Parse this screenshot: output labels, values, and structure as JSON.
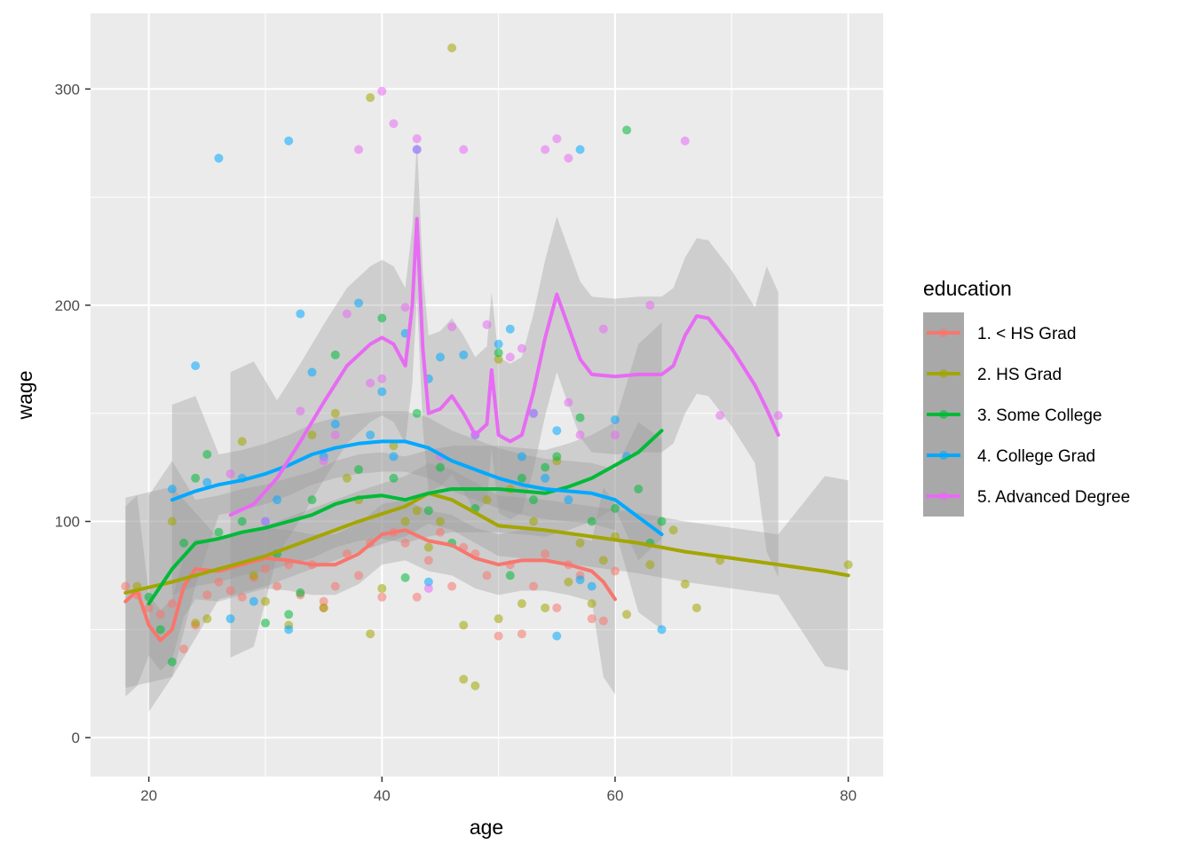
{
  "chart_data": {
    "type": "scatter",
    "xlabel": "age",
    "ylabel": "wage",
    "xlim": [
      15,
      83
    ],
    "ylim": [
      -18,
      335
    ],
    "x_ticks": [
      20,
      40,
      60,
      80
    ],
    "y_ticks": [
      0,
      100,
      200,
      300
    ],
    "x_tick_labels": [
      "20",
      "40",
      "60",
      "80"
    ],
    "y_tick_labels": [
      "0",
      "100",
      "200",
      "300"
    ],
    "grid": true,
    "legend_position": "right",
    "legend_title": "education",
    "series": [
      {
        "name": "1. < HS Grad",
        "color": "#F8766D",
        "points": [
          [
            18,
            70
          ],
          [
            19,
            66
          ],
          [
            20,
            60
          ],
          [
            21,
            57
          ],
          [
            22,
            62
          ],
          [
            23,
            41
          ],
          [
            24,
            52
          ],
          [
            25,
            66
          ],
          [
            26,
            72
          ],
          [
            27,
            68
          ],
          [
            28,
            65
          ],
          [
            29,
            74
          ],
          [
            30,
            78
          ],
          [
            31,
            70
          ],
          [
            32,
            80
          ],
          [
            33,
            66
          ],
          [
            34,
            80
          ],
          [
            35,
            60
          ],
          [
            35,
            63
          ],
          [
            36,
            70
          ],
          [
            37,
            85
          ],
          [
            38,
            75
          ],
          [
            39,
            90
          ],
          [
            40,
            65
          ],
          [
            41,
            95
          ],
          [
            42,
            90
          ],
          [
            43,
            65
          ],
          [
            44,
            82
          ],
          [
            45,
            95
          ],
          [
            46,
            70
          ],
          [
            47,
            88
          ],
          [
            48,
            85
          ],
          [
            49,
            75
          ],
          [
            50,
            47
          ],
          [
            51,
            80
          ],
          [
            52,
            48
          ],
          [
            53,
            70
          ],
          [
            54,
            85
          ],
          [
            55,
            60
          ],
          [
            56,
            80
          ],
          [
            57,
            75
          ],
          [
            58,
            55
          ],
          [
            59,
            54
          ],
          [
            60,
            77
          ]
        ],
        "smooth": [
          [
            18,
            63
          ],
          [
            19,
            68
          ],
          [
            20,
            52
          ],
          [
            21,
            45
          ],
          [
            22,
            50
          ],
          [
            23,
            70
          ],
          [
            24,
            78
          ],
          [
            26,
            77
          ],
          [
            28,
            80
          ],
          [
            30,
            83
          ],
          [
            32,
            82
          ],
          [
            34,
            80
          ],
          [
            36,
            80
          ],
          [
            38,
            85
          ],
          [
            40,
            94
          ],
          [
            42,
            96
          ],
          [
            44,
            91
          ],
          [
            46,
            89
          ],
          [
            48,
            83
          ],
          [
            50,
            80
          ],
          [
            52,
            82
          ],
          [
            54,
            82
          ],
          [
            56,
            80
          ],
          [
            58,
            77
          ],
          [
            59,
            72
          ],
          [
            60,
            64
          ]
        ]
      },
      {
        "name": "2. HS Grad",
        "color": "#A3A500",
        "points": [
          [
            19,
            70
          ],
          [
            22,
            100
          ],
          [
            24,
            53
          ],
          [
            25,
            55
          ],
          [
            28,
            137
          ],
          [
            29,
            75
          ],
          [
            30,
            63
          ],
          [
            32,
            52
          ],
          [
            34,
            140
          ],
          [
            35,
            60
          ],
          [
            36,
            150
          ],
          [
            37,
            120
          ],
          [
            38,
            110
          ],
          [
            39,
            296
          ],
          [
            39,
            48
          ],
          [
            40,
            69
          ],
          [
            41,
            135
          ],
          [
            42,
            100
          ],
          [
            43,
            105
          ],
          [
            44,
            88
          ],
          [
            45,
            100
          ],
          [
            46,
            319
          ],
          [
            47,
            52
          ],
          [
            47,
            27
          ],
          [
            48,
            24
          ],
          [
            49,
            110
          ],
          [
            50,
            55
          ],
          [
            50,
            175
          ],
          [
            51,
            115
          ],
          [
            52,
            62
          ],
          [
            53,
            100
          ],
          [
            54,
            60
          ],
          [
            55,
            128
          ],
          [
            56,
            72
          ],
          [
            57,
            90
          ],
          [
            58,
            62
          ],
          [
            59,
            82
          ],
          [
            60,
            93
          ],
          [
            61,
            57
          ],
          [
            63,
            80
          ],
          [
            65,
            96
          ],
          [
            66,
            71
          ],
          [
            67,
            60
          ],
          [
            69,
            82
          ],
          [
            80,
            80
          ]
        ],
        "smooth": [
          [
            18,
            67
          ],
          [
            22,
            72
          ],
          [
            26,
            78
          ],
          [
            30,
            84
          ],
          [
            34,
            92
          ],
          [
            38,
            100
          ],
          [
            42,
            107
          ],
          [
            44,
            113
          ],
          [
            46,
            110
          ],
          [
            48,
            104
          ],
          [
            50,
            98
          ],
          [
            54,
            96
          ],
          [
            58,
            93
          ],
          [
            62,
            90
          ],
          [
            66,
            86
          ],
          [
            70,
            83
          ],
          [
            74,
            80
          ],
          [
            78,
            77
          ],
          [
            80,
            75
          ]
        ]
      },
      {
        "name": "3. Some College",
        "color": "#00BA38",
        "points": [
          [
            20,
            65
          ],
          [
            21,
            50
          ],
          [
            22,
            35
          ],
          [
            23,
            90
          ],
          [
            24,
            120
          ],
          [
            25,
            131
          ],
          [
            26,
            95
          ],
          [
            28,
            100
          ],
          [
            30,
            53
          ],
          [
            31,
            85
          ],
          [
            32,
            57
          ],
          [
            33,
            67
          ],
          [
            34,
            110
          ],
          [
            36,
            177
          ],
          [
            38,
            124
          ],
          [
            40,
            194
          ],
          [
            41,
            120
          ],
          [
            42,
            74
          ],
          [
            43,
            150
          ],
          [
            44,
            105
          ],
          [
            45,
            125
          ],
          [
            46,
            90
          ],
          [
            48,
            106
          ],
          [
            50,
            178
          ],
          [
            51,
            75
          ],
          [
            52,
            120
          ],
          [
            53,
            110
          ],
          [
            54,
            125
          ],
          [
            55,
            130
          ],
          [
            57,
            148
          ],
          [
            58,
            100
          ],
          [
            60,
            106
          ],
          [
            61,
            281
          ],
          [
            62,
            115
          ],
          [
            63,
            90
          ],
          [
            64,
            100
          ]
        ],
        "smooth": [
          [
            20,
            62
          ],
          [
            22,
            78
          ],
          [
            24,
            90
          ],
          [
            26,
            92
          ],
          [
            28,
            95
          ],
          [
            30,
            97
          ],
          [
            32,
            100
          ],
          [
            34,
            103
          ],
          [
            36,
            108
          ],
          [
            38,
            111
          ],
          [
            40,
            112
          ],
          [
            42,
            110
          ],
          [
            44,
            113
          ],
          [
            46,
            115
          ],
          [
            48,
            115
          ],
          [
            50,
            115
          ],
          [
            52,
            114
          ],
          [
            54,
            113
          ],
          [
            56,
            116
          ],
          [
            58,
            120
          ],
          [
            60,
            126
          ],
          [
            62,
            132
          ],
          [
            64,
            142
          ]
        ]
      },
      {
        "name": "4. College Grad",
        "color": "#00A9FF",
        "points": [
          [
            22,
            115
          ],
          [
            24,
            172
          ],
          [
            25,
            118
          ],
          [
            26,
            268
          ],
          [
            27,
            55
          ],
          [
            28,
            120
          ],
          [
            29,
            63
          ],
          [
            30,
            100
          ],
          [
            31,
            110
          ],
          [
            32,
            276
          ],
          [
            32,
            50
          ],
          [
            33,
            196
          ],
          [
            34,
            169
          ],
          [
            35,
            130
          ],
          [
            36,
            145
          ],
          [
            38,
            201
          ],
          [
            39,
            140
          ],
          [
            40,
            160
          ],
          [
            41,
            130
          ],
          [
            42,
            187
          ],
          [
            43,
            272
          ],
          [
            44,
            72
          ],
          [
            44,
            166
          ],
          [
            45,
            176
          ],
          [
            47,
            177
          ],
          [
            48,
            140
          ],
          [
            50,
            182
          ],
          [
            51,
            189
          ],
          [
            52,
            130
          ],
          [
            53,
            150
          ],
          [
            54,
            120
          ],
          [
            55,
            47
          ],
          [
            55,
            142
          ],
          [
            56,
            110
          ],
          [
            57,
            272
          ],
          [
            57,
            73
          ],
          [
            58,
            70
          ],
          [
            60,
            147
          ],
          [
            61,
            130
          ],
          [
            64,
            50
          ]
        ],
        "smooth": [
          [
            22,
            110
          ],
          [
            24,
            114
          ],
          [
            26,
            117
          ],
          [
            28,
            119
          ],
          [
            30,
            122
          ],
          [
            32,
            126
          ],
          [
            34,
            131
          ],
          [
            36,
            134
          ],
          [
            38,
            136
          ],
          [
            40,
            137
          ],
          [
            42,
            137
          ],
          [
            44,
            134
          ],
          [
            46,
            128
          ],
          [
            48,
            124
          ],
          [
            50,
            120
          ],
          [
            52,
            117
          ],
          [
            54,
            115
          ],
          [
            56,
            114
          ],
          [
            58,
            113
          ],
          [
            60,
            110
          ],
          [
            62,
            102
          ],
          [
            64,
            94
          ]
        ]
      },
      {
        "name": "5. Advanced Degree",
        "color": "#E76BF3",
        "points": [
          [
            27,
            122
          ],
          [
            30,
            100
          ],
          [
            33,
            151
          ],
          [
            35,
            128
          ],
          [
            36,
            140
          ],
          [
            37,
            196
          ],
          [
            38,
            272
          ],
          [
            39,
            164
          ],
          [
            40,
            299
          ],
          [
            40,
            166
          ],
          [
            41,
            284
          ],
          [
            42,
            199
          ],
          [
            43,
            277
          ],
          [
            43,
            272
          ],
          [
            44,
            69
          ],
          [
            45,
            130
          ],
          [
            46,
            190
          ],
          [
            47,
            272
          ],
          [
            48,
            140
          ],
          [
            49,
            191
          ],
          [
            51,
            176
          ],
          [
            52,
            180
          ],
          [
            53,
            150
          ],
          [
            54,
            272
          ],
          [
            55,
            277
          ],
          [
            56,
            268
          ],
          [
            56,
            155
          ],
          [
            57,
            140
          ],
          [
            59,
            189
          ],
          [
            60,
            140
          ],
          [
            63,
            200
          ],
          [
            66,
            276
          ],
          [
            69,
            149
          ],
          [
            74,
            149
          ]
        ],
        "smooth": [
          [
            27,
            103
          ],
          [
            29,
            108
          ],
          [
            31,
            120
          ],
          [
            33,
            137
          ],
          [
            35,
            155
          ],
          [
            37,
            172
          ],
          [
            39,
            182
          ],
          [
            40,
            185
          ],
          [
            41,
            182
          ],
          [
            42,
            172
          ],
          [
            42.6,
            200
          ],
          [
            43,
            240
          ],
          [
            43.5,
            180
          ],
          [
            44,
            150
          ],
          [
            45,
            152
          ],
          [
            46,
            158
          ],
          [
            47,
            150
          ],
          [
            48,
            140
          ],
          [
            49,
            145
          ],
          [
            49.4,
            170
          ],
          [
            50,
            140
          ],
          [
            51,
            137
          ],
          [
            52,
            140
          ],
          [
            53,
            160
          ],
          [
            54,
            185
          ],
          [
            55,
            205
          ],
          [
            56,
            190
          ],
          [
            57,
            175
          ],
          [
            58,
            168
          ],
          [
            60,
            167
          ],
          [
            62,
            168
          ],
          [
            64,
            168
          ],
          [
            65,
            172
          ],
          [
            66,
            186
          ],
          [
            67,
            195
          ],
          [
            68,
            194
          ],
          [
            70,
            180
          ],
          [
            72,
            163
          ],
          [
            73,
            152
          ],
          [
            74,
            140
          ]
        ]
      }
    ]
  }
}
